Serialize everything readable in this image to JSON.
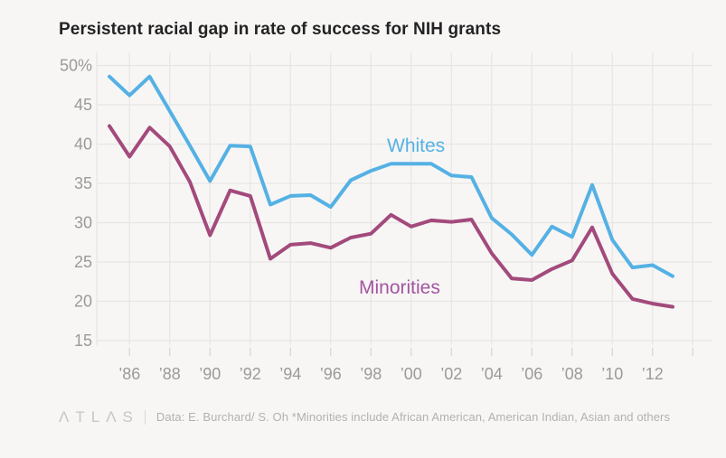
{
  "title": "Persistent racial gap in rate of success for NIH grants",
  "footer": {
    "logo": "ΛTLΛS",
    "source": "Data: E. Burchard/ S. Oh *Minorities include African American, American Indian, Asian and others"
  },
  "chart_data": {
    "type": "line",
    "title": "Persistent racial gap in rate of success for NIH grants",
    "x": [
      1985,
      1986,
      1987,
      1988,
      1989,
      1990,
      1991,
      1992,
      1993,
      1994,
      1995,
      1996,
      1997,
      1998,
      1999,
      2000,
      2001,
      2002,
      2003,
      2004,
      2005,
      2006,
      2007,
      2008,
      2009,
      2010,
      2011,
      2012,
      2013
    ],
    "series": [
      {
        "name": "Whites",
        "color": "#55b1e4",
        "label": {
          "text": "Whites",
          "x": 428,
          "y": 168,
          "color": "#55b1e4"
        },
        "values": [
          48.6,
          46.2,
          48.6,
          44.2,
          39.8,
          35.3,
          39.8,
          39.7,
          32.3,
          33.4,
          33.5,
          32.0,
          35.4,
          36.6,
          37.5,
          37.5,
          37.5,
          36.0,
          35.8,
          30.6,
          28.5,
          25.9,
          29.5,
          28.2,
          34.8,
          27.8,
          24.3,
          24.6,
          23.2
        ]
      },
      {
        "name": "Minorities",
        "color": "#a34a7c",
        "label": {
          "text": "Minorities",
          "x": 397,
          "y": 325,
          "color": "#a455a0"
        },
        "values": [
          42.3,
          38.4,
          42.1,
          39.7,
          35.2,
          28.4,
          34.1,
          33.4,
          25.4,
          27.2,
          27.4,
          26.8,
          28.1,
          28.6,
          31.0,
          29.5,
          30.3,
          30.1,
          30.4,
          26.1,
          22.9,
          22.7,
          24.1,
          25.2,
          29.4,
          23.5,
          20.3,
          19.7,
          19.3
        ]
      }
    ],
    "y_axis": {
      "range": [
        15,
        50
      ],
      "ticks": [
        {
          "value": 50,
          "label": "50%"
        },
        {
          "value": 45,
          "label": "45"
        },
        {
          "value": 40,
          "label": "40"
        },
        {
          "value": 35,
          "label": "35"
        },
        {
          "value": 30,
          "label": "30"
        },
        {
          "value": 25,
          "label": "25"
        },
        {
          "value": 20,
          "label": "20"
        },
        {
          "value": 15,
          "label": "15"
        }
      ]
    },
    "x_axis": {
      "range": [
        1985,
        2013
      ],
      "grid_years": [
        1986,
        1988,
        1990,
        1992,
        1994,
        1996,
        1998,
        2000,
        2002,
        2004,
        2006,
        2008,
        2010,
        2012,
        2014
      ],
      "ticks": [
        {
          "year": 1986,
          "label": "’86"
        },
        {
          "year": 1988,
          "label": "’88"
        },
        {
          "year": 1990,
          "label": "’90"
        },
        {
          "year": 1992,
          "label": "’92"
        },
        {
          "year": 1994,
          "label": "’94"
        },
        {
          "year": 1996,
          "label": "’96"
        },
        {
          "year": 1998,
          "label": "’98"
        },
        {
          "year": 2000,
          "label": "’00"
        },
        {
          "year": 2002,
          "label": "’02"
        },
        {
          "year": 2004,
          "label": "’04"
        },
        {
          "year": 2006,
          "label": "’06"
        },
        {
          "year": 2008,
          "label": "’08"
        },
        {
          "year": 2010,
          "label": "’10"
        },
        {
          "year": 2012,
          "label": "’12"
        }
      ]
    },
    "grid": true,
    "legend_position": "inline-labels",
    "colors": {
      "background": "#f7f6f5",
      "grid": "#e8e6e5",
      "tick": "#d9d7d6",
      "axis_labels": "#9c9a99",
      "title": "#232323"
    }
  }
}
